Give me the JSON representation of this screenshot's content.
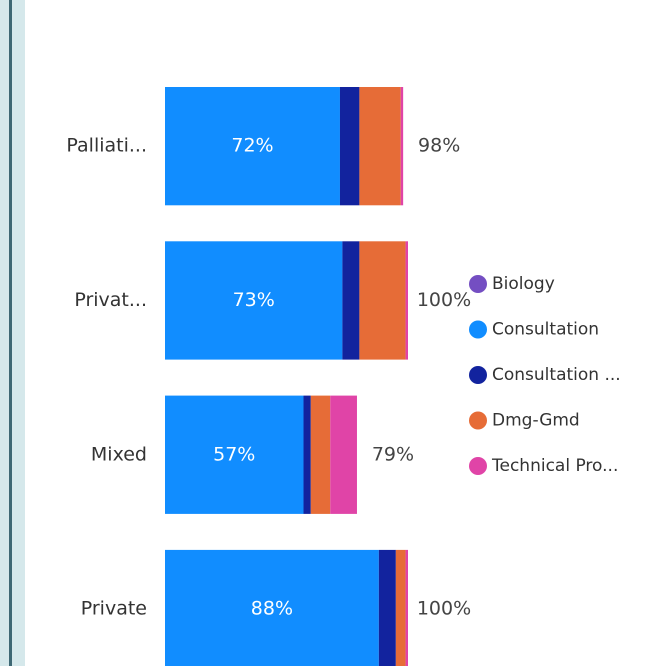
{
  "chart_data": {
    "type": "stacked-bar-horizontal",
    "categories": [
      "Palliati...",
      "Privat...",
      "Mixed",
      "Private"
    ],
    "series": [
      {
        "name": "Biology",
        "color": "#744EC2",
        "values": [
          0,
          0,
          0,
          0
        ]
      },
      {
        "name": "Consultation",
        "color": "#118DFF",
        "values": [
          72,
          73,
          57,
          88
        ],
        "value_labels": [
          "72%",
          "73%",
          "57%",
          "88%"
        ]
      },
      {
        "name": "Consultation ...",
        "color": "#12239E",
        "values": [
          8,
          7,
          3,
          7
        ]
      },
      {
        "name": "Dmg-Gmd",
        "color": "#E66C37",
        "values": [
          17,
          19,
          8,
          4
        ]
      },
      {
        "name": "Technical Pro...",
        "color": "#E044A7",
        "values": [
          1,
          1,
          11,
          1
        ]
      }
    ],
    "totals": [
      98,
      100,
      79,
      100
    ],
    "total_labels": [
      "98%",
      "100%",
      "79%",
      "100%"
    ]
  }
}
